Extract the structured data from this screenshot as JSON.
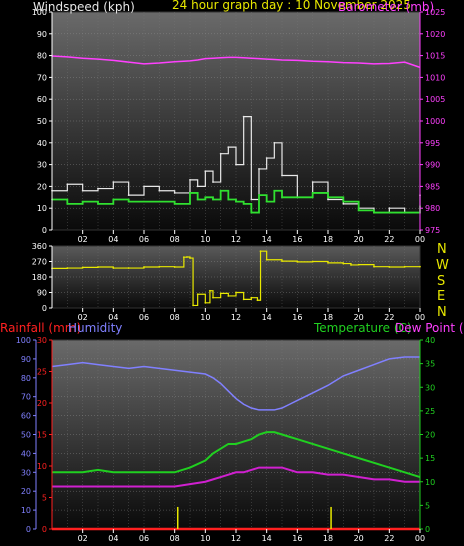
{
  "header": {
    "wind_title": "Windspeed (kph)",
    "graph_title": "24 hour graph day : 10 November 2025",
    "baro_title": "Barometer (mb)"
  },
  "bottom_header": {
    "rain_title": "Rainfall (mm)",
    "humidity_title": "Humidity",
    "temp_title": "Temperature (C)",
    "dew_title": "Dew Point (C)"
  },
  "compass_labels": [
    "N",
    "W",
    "S",
    "E",
    "N"
  ],
  "x_ticks": [
    "02",
    "04",
    "06",
    "08",
    "10",
    "12",
    "14",
    "16",
    "18",
    "20",
    "22",
    "00"
  ],
  "colors": {
    "wind": "#e8e8e8",
    "gust": "#e8e8e8",
    "avgwind": "#30e030",
    "baro": "#ff40ff",
    "direction": "#e8e800",
    "humidity": "#8080ff",
    "temperature": "#20d020",
    "dewpoint": "#d020d0",
    "rain": "#ff2020",
    "rainbar": "#e8e800"
  },
  "chart_data": [
    {
      "type": "line",
      "name": "wind-chart",
      "x": [
        0,
        1,
        2,
        3,
        4,
        5,
        6,
        7,
        8,
        9,
        9.5,
        10,
        10.5,
        11,
        11.5,
        12,
        12.5,
        13,
        13.5,
        14,
        14.5,
        15,
        16,
        17,
        18,
        19,
        20,
        21,
        22,
        23,
        24
      ],
      "x_ticks": [
        "02",
        "04",
        "06",
        "08",
        "10",
        "12",
        "14",
        "16",
        "18",
        "20",
        "22",
        "00"
      ],
      "ylim": [
        0,
        100
      ],
      "y2lim": [
        975,
        1025
      ],
      "yticks": [
        0,
        10,
        20,
        30,
        40,
        50,
        60,
        70,
        80,
        90,
        100
      ],
      "y2ticks": [
        975,
        980,
        985,
        990,
        995,
        1000,
        1005,
        1010,
        1015,
        1020,
        1025
      ],
      "series": [
        {
          "name": "gust",
          "axis": "left",
          "values": [
            18,
            21,
            18,
            19,
            22,
            16,
            20,
            18,
            17,
            23,
            20,
            27,
            22,
            35,
            38,
            30,
            52,
            14,
            28,
            33,
            40,
            25,
            15,
            22,
            14,
            12,
            10,
            8,
            10,
            8,
            16
          ]
        },
        {
          "name": "average",
          "axis": "left",
          "values": [
            14,
            12,
            13,
            12,
            14,
            13,
            13,
            13,
            12,
            17,
            14,
            15,
            14,
            18,
            14,
            13,
            12,
            8,
            16,
            13,
            18,
            15,
            15,
            17,
            15,
            13,
            9,
            8,
            8,
            8,
            11
          ]
        },
        {
          "name": "barometer",
          "axis": "right",
          "values": [
            1014.9,
            1014.7,
            1014.4,
            1014.2,
            1013.9,
            1013.5,
            1013.1,
            1013.3,
            1013.6,
            1013.8,
            1014,
            1014.3,
            1014.4,
            1014.5,
            1014.6,
            1014.6,
            1014.5,
            1014.4,
            1014.3,
            1014.2,
            1014.1,
            1014,
            1013.9,
            1013.7,
            1013.6,
            1013.4,
            1013.3,
            1013.1,
            1013.2,
            1013.5,
            1012.3
          ]
        }
      ]
    },
    {
      "type": "line",
      "name": "direction-chart",
      "x": [
        0,
        1,
        2,
        3,
        4,
        5,
        6,
        7,
        8,
        8.6,
        8.8,
        9.0,
        9.2,
        9.5,
        10,
        10.3,
        10.5,
        11,
        11.5,
        12,
        12.5,
        13,
        13.4,
        13.6,
        14,
        15,
        16,
        17,
        18,
        19,
        19.5,
        20,
        21,
        22,
        23,
        24
      ],
      "ylim": [
        0,
        360
      ],
      "yticks": [
        0,
        90,
        180,
        270,
        360
      ],
      "ytick_labels": [
        "0",
        "90",
        "180",
        "270",
        "360"
      ],
      "series": [
        {
          "name": "direction",
          "values": [
            230,
            232,
            236,
            238,
            232,
            232,
            238,
            240,
            238,
            295,
            296,
            290,
            15,
            80,
            30,
            100,
            60,
            85,
            70,
            90,
            50,
            60,
            45,
            330,
            280,
            272,
            268,
            270,
            262,
            258,
            250,
            252,
            240,
            238,
            240,
            240
          ]
        }
      ]
    },
    {
      "type": "line",
      "name": "temperature-humidity-chart",
      "x": [
        0,
        1,
        2,
        3,
        4,
        5,
        6,
        7,
        8,
        9,
        10,
        10.5,
        11,
        11.5,
        12,
        12.5,
        13,
        13.5,
        14,
        14.5,
        15,
        15.5,
        16,
        17,
        18,
        19,
        20,
        21,
        22,
        23,
        24
      ],
      "left_axis": {
        "label": "Humidity",
        "ylim": [
          0,
          100
        ],
        "yticks": [
          0,
          10,
          20,
          30,
          40,
          50,
          60,
          70,
          80,
          90,
          100
        ]
      },
      "rain_axis": {
        "label": "Rainfall (mm)",
        "ylim": [
          0,
          30
        ],
        "yticks": [
          0,
          5,
          10,
          15,
          20,
          25,
          30
        ]
      },
      "right_axis": {
        "label": "Temperature (C)",
        "ylim": [
          0,
          40
        ],
        "yticks": [
          0,
          5,
          10,
          15,
          20,
          25,
          30,
          35,
          40
        ]
      },
      "series": [
        {
          "name": "humidity",
          "axis": "left",
          "values": [
            86,
            87,
            88,
            87,
            86,
            85,
            86,
            85,
            84,
            83,
            82,
            80,
            77,
            73,
            69,
            66,
            64,
            63,
            63,
            63,
            64,
            66,
            68,
            72,
            76,
            81,
            84,
            87,
            90,
            91,
            91
          ]
        },
        {
          "name": "temperature",
          "axis": "right",
          "values": [
            12,
            12,
            12,
            12.5,
            12,
            12,
            12,
            12,
            12,
            13,
            14.5,
            16,
            17,
            18,
            18,
            18.5,
            19,
            20,
            20.5,
            20.5,
            20,
            19.5,
            19,
            18,
            17,
            16,
            15,
            14,
            13,
            12,
            11
          ]
        },
        {
          "name": "dewpoint",
          "axis": "right",
          "values": [
            9,
            9,
            9,
            9,
            9,
            9,
            9,
            9,
            9,
            9.5,
            10,
            10.5,
            11,
            11.5,
            12,
            12,
            12.5,
            13,
            13,
            13,
            13,
            12.5,
            12,
            12,
            11.5,
            11.5,
            11,
            10.5,
            10.5,
            10,
            10
          ]
        },
        {
          "name": "rainfall",
          "axis": "rain",
          "values": [
            0,
            0,
            0,
            0,
            0,
            0,
            0,
            0,
            0,
            0,
            0,
            0,
            0,
            0,
            0,
            0,
            0,
            0,
            0,
            0,
            0,
            0,
            0,
            0,
            0,
            0,
            0,
            0,
            0,
            0,
            0
          ]
        }
      ],
      "rain_rate_bars": [
        {
          "x": 8.2,
          "value": 3.5
        },
        {
          "x": 18.2,
          "value": 3.5
        }
      ]
    }
  ]
}
